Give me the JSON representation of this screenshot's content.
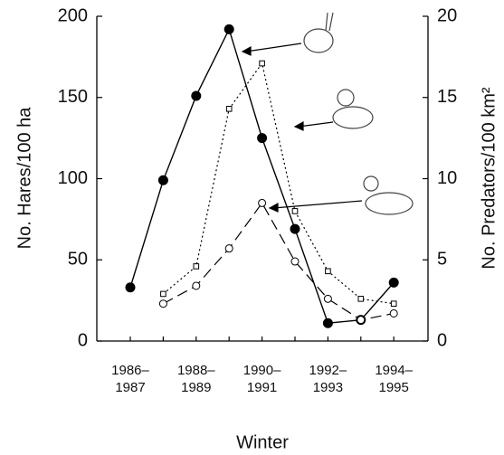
{
  "chart_data": {
    "type": "line",
    "x_label": "Winter",
    "y_label": "No. Hares/100 ha",
    "y2_label": "No. Predators/100 km²",
    "categories": [
      "1986–\n1987",
      null,
      "1988–\n1989",
      null,
      "1990–\n1991",
      null,
      "1992–\n1993",
      null,
      "1994–\n1995"
    ],
    "ylim": [
      0,
      200
    ],
    "yticks": [
      0,
      50,
      100,
      150,
      200
    ],
    "y2lim": [
      0,
      20
    ],
    "y2ticks": [
      0,
      5,
      10,
      15,
      20
    ],
    "series": [
      {
        "color": "#000000",
        "style": "solid",
        "marker": "filled-circle",
        "axis": "y",
        "values": [
          33,
          99,
          151,
          192,
          125,
          69,
          11,
          13,
          36
        ]
      },
      {
        "color": "#000000",
        "style": "dotted",
        "marker": "open-square",
        "axis": "y2",
        "values": [
          null,
          2.9,
          4.6,
          14.3,
          17.1,
          8.0,
          4.3,
          2.6,
          2.3
        ]
      },
      {
        "color": "#000000",
        "style": "dashed",
        "marker": "open-circle",
        "axis": "y2",
        "values": [
          null,
          2.3,
          3.4,
          5.7,
          8.5,
          4.9,
          2.6,
          1.3,
          1.7
        ]
      }
    ]
  }
}
